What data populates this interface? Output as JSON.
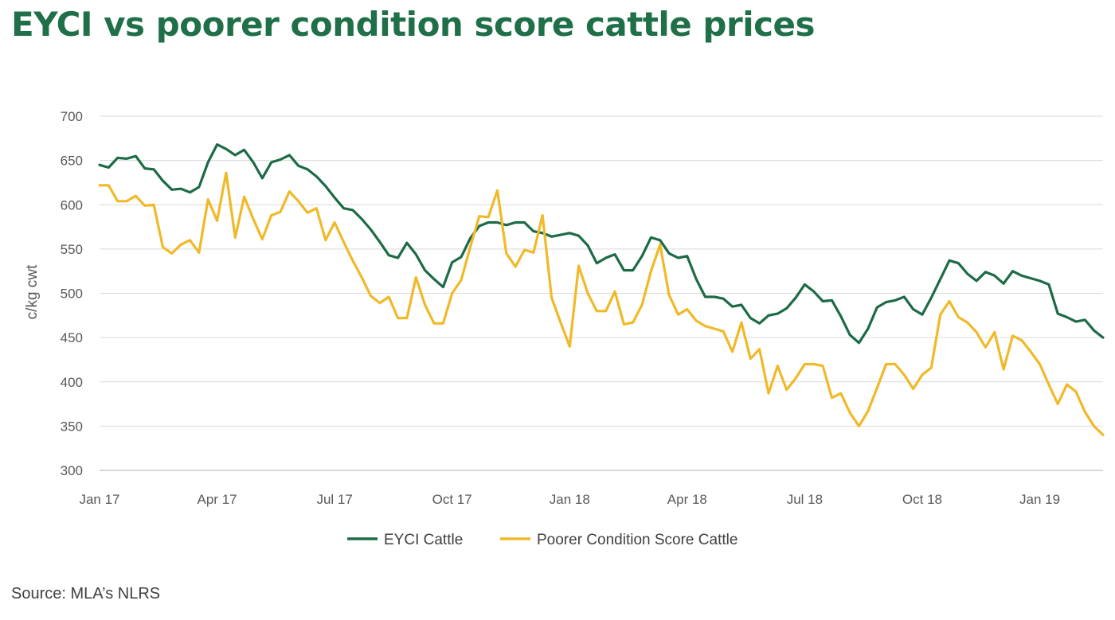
{
  "colors": {
    "title": "#1f6f48",
    "eyci": "#1c6b46",
    "poorer": "#f0b929",
    "grid": "#d9d9d9"
  },
  "source": "Source: MLA’s NLRS",
  "chart_data": {
    "type": "line",
    "title": "EYCI vs poorer condition score cattle prices",
    "ylabel": "c/kg cwt",
    "xlabel": "",
    "ylim": [
      300,
      700
    ],
    "yticks": [
      300,
      350,
      400,
      450,
      500,
      550,
      600,
      650,
      700
    ],
    "xrange": [
      1,
      112
    ],
    "xticks": [
      {
        "label": "Jan 17",
        "x": 1
      },
      {
        "label": "Apr 17",
        "x": 14
      },
      {
        "label": "Jul 17",
        "x": 27
      },
      {
        "label": "Oct 17",
        "x": 40
      },
      {
        "label": "Jan 18",
        "x": 53
      },
      {
        "label": "Apr 18",
        "x": 66
      },
      {
        "label": "Jul 18",
        "x": 79
      },
      {
        "label": "Oct 18",
        "x": 92
      },
      {
        "label": "Jan 19",
        "x": 105
      }
    ],
    "grid": true,
    "legend": "bottom",
    "series": [
      {
        "name": "EYCI Cattle",
        "color": "#1c6b46",
        "points": [
          [
            1,
            645
          ],
          [
            2,
            642
          ],
          [
            3,
            653
          ],
          [
            4,
            652
          ],
          [
            5,
            655
          ],
          [
            6,
            641
          ],
          [
            7,
            640
          ],
          [
            8,
            627
          ],
          [
            9,
            617
          ],
          [
            10,
            618
          ],
          [
            11,
            614
          ],
          [
            12,
            620
          ],
          [
            13,
            648
          ],
          [
            14,
            668
          ],
          [
            15,
            663
          ],
          [
            16,
            656
          ],
          [
            17,
            662
          ],
          [
            18,
            648
          ],
          [
            19,
            630
          ],
          [
            20,
            648
          ],
          [
            21,
            651
          ],
          [
            22,
            656
          ],
          [
            23,
            644
          ],
          [
            24,
            640
          ],
          [
            25,
            632
          ],
          [
            26,
            621
          ],
          [
            27,
            608
          ],
          [
            28,
            596
          ],
          [
            29,
            594
          ],
          [
            30,
            584
          ],
          [
            31,
            572
          ],
          [
            32,
            558
          ],
          [
            33,
            543
          ],
          [
            34,
            540
          ],
          [
            35,
            557
          ],
          [
            36,
            544
          ],
          [
            37,
            526
          ],
          [
            38,
            516
          ],
          [
            39,
            507
          ],
          [
            40,
            535
          ],
          [
            41,
            541
          ],
          [
            42,
            562
          ],
          [
            43,
            576
          ],
          [
            44,
            580
          ],
          [
            45,
            580
          ],
          [
            46,
            577
          ],
          [
            47,
            580
          ],
          [
            48,
            580
          ],
          [
            49,
            570
          ],
          [
            50,
            568
          ],
          [
            51,
            564
          ],
          [
            52,
            566
          ],
          [
            53,
            568
          ],
          [
            54,
            565
          ],
          [
            55,
            554
          ],
          [
            56,
            534
          ],
          [
            57,
            540
          ],
          [
            58,
            544
          ],
          [
            59,
            526
          ],
          [
            60,
            526
          ],
          [
            61,
            542
          ],
          [
            62,
            563
          ],
          [
            63,
            560
          ],
          [
            64,
            545
          ],
          [
            65,
            540
          ],
          [
            66,
            542
          ],
          [
            67,
            516
          ],
          [
            68,
            496
          ],
          [
            69,
            496
          ],
          [
            70,
            494
          ],
          [
            71,
            485
          ],
          [
            72,
            487
          ],
          [
            73,
            472
          ],
          [
            74,
            466
          ],
          [
            75,
            475
          ],
          [
            76,
            477
          ],
          [
            77,
            483
          ],
          [
            78,
            495
          ],
          [
            79,
            510
          ],
          [
            80,
            502
          ],
          [
            81,
            491
          ],
          [
            82,
            492
          ],
          [
            83,
            474
          ],
          [
            84,
            453
          ],
          [
            85,
            444
          ],
          [
            86,
            460
          ],
          [
            87,
            484
          ],
          [
            88,
            490
          ],
          [
            89,
            492
          ],
          [
            90,
            496
          ],
          [
            91,
            482
          ],
          [
            92,
            476
          ],
          [
            93,
            495
          ],
          [
            94,
            516
          ],
          [
            95,
            537
          ],
          [
            96,
            534
          ],
          [
            97,
            522
          ],
          [
            98,
            514
          ],
          [
            99,
            524
          ],
          [
            100,
            520
          ],
          [
            101,
            511
          ],
          [
            102,
            525
          ],
          [
            103,
            520
          ],
          [
            104,
            517
          ],
          [
            105,
            514
          ],
          [
            106,
            510
          ],
          [
            107,
            477
          ],
          [
            108,
            473
          ],
          [
            109,
            468
          ],
          [
            110,
            470
          ],
          [
            111,
            458
          ],
          [
            112,
            450
          ]
        ]
      },
      {
        "name": "Poorer Condition Score Cattle",
        "color": "#f0b929",
        "points": [
          [
            1,
            622
          ],
          [
            2,
            622
          ],
          [
            3,
            604
          ],
          [
            4,
            604
          ],
          [
            5,
            610
          ],
          [
            6,
            599
          ],
          [
            7,
            600
          ],
          [
            8,
            552
          ],
          [
            9,
            545
          ],
          [
            10,
            555
          ],
          [
            11,
            560
          ],
          [
            12,
            546
          ],
          [
            13,
            606
          ],
          [
            14,
            582
          ],
          [
            15,
            636
          ],
          [
            16,
            563
          ],
          [
            17,
            609
          ],
          [
            18,
            584
          ],
          [
            19,
            561
          ],
          [
            20,
            588
          ],
          [
            21,
            592
          ],
          [
            22,
            615
          ],
          [
            23,
            604
          ],
          [
            24,
            591
          ],
          [
            25,
            596
          ],
          [
            26,
            560
          ],
          [
            27,
            580
          ],
          [
            28,
            558
          ],
          [
            29,
            537
          ],
          [
            30,
            518
          ],
          [
            31,
            497
          ],
          [
            32,
            489
          ],
          [
            33,
            496
          ],
          [
            34,
            472
          ],
          [
            35,
            472
          ],
          [
            36,
            518
          ],
          [
            37,
            487
          ],
          [
            38,
            466
          ],
          [
            39,
            466
          ],
          [
            40,
            500
          ],
          [
            41,
            515
          ],
          [
            42,
            552
          ],
          [
            43,
            587
          ],
          [
            44,
            586
          ],
          [
            45,
            616
          ],
          [
            46,
            545
          ],
          [
            47,
            530
          ],
          [
            48,
            549
          ],
          [
            49,
            546
          ],
          [
            50,
            588
          ],
          [
            51,
            495
          ],
          [
            52,
            467
          ],
          [
            53,
            440
          ],
          [
            54,
            531
          ],
          [
            55,
            500
          ],
          [
            56,
            480
          ],
          [
            57,
            480
          ],
          [
            58,
            502
          ],
          [
            59,
            465
          ],
          [
            60,
            467
          ],
          [
            61,
            487
          ],
          [
            62,
            525
          ],
          [
            63,
            555
          ],
          [
            64,
            498
          ],
          [
            65,
            476
          ],
          [
            66,
            482
          ],
          [
            67,
            469
          ],
          [
            68,
            463
          ],
          [
            69,
            460
          ],
          [
            70,
            457
          ],
          [
            71,
            434
          ],
          [
            72,
            467
          ],
          [
            73,
            426
          ],
          [
            74,
            437
          ],
          [
            75,
            387
          ],
          [
            76,
            418
          ],
          [
            77,
            391
          ],
          [
            78,
            404
          ],
          [
            79,
            420
          ],
          [
            80,
            420
          ],
          [
            81,
            418
          ],
          [
            82,
            382
          ],
          [
            83,
            387
          ],
          [
            84,
            365
          ],
          [
            85,
            350
          ],
          [
            86,
            367
          ],
          [
            87,
            393
          ],
          [
            88,
            420
          ],
          [
            89,
            420
          ],
          [
            90,
            408
          ],
          [
            91,
            392
          ],
          [
            92,
            408
          ],
          [
            93,
            416
          ],
          [
            94,
            476
          ],
          [
            95,
            491
          ],
          [
            96,
            473
          ],
          [
            97,
            467
          ],
          [
            98,
            456
          ],
          [
            99,
            439
          ],
          [
            100,
            456
          ],
          [
            101,
            414
          ],
          [
            102,
            452
          ],
          [
            103,
            447
          ],
          [
            104,
            434
          ],
          [
            105,
            420
          ],
          [
            106,
            397
          ],
          [
            107,
            375
          ],
          [
            108,
            397
          ],
          [
            109,
            389
          ],
          [
            110,
            366
          ],
          [
            111,
            350
          ],
          [
            112,
            340
          ]
        ]
      }
    ]
  }
}
